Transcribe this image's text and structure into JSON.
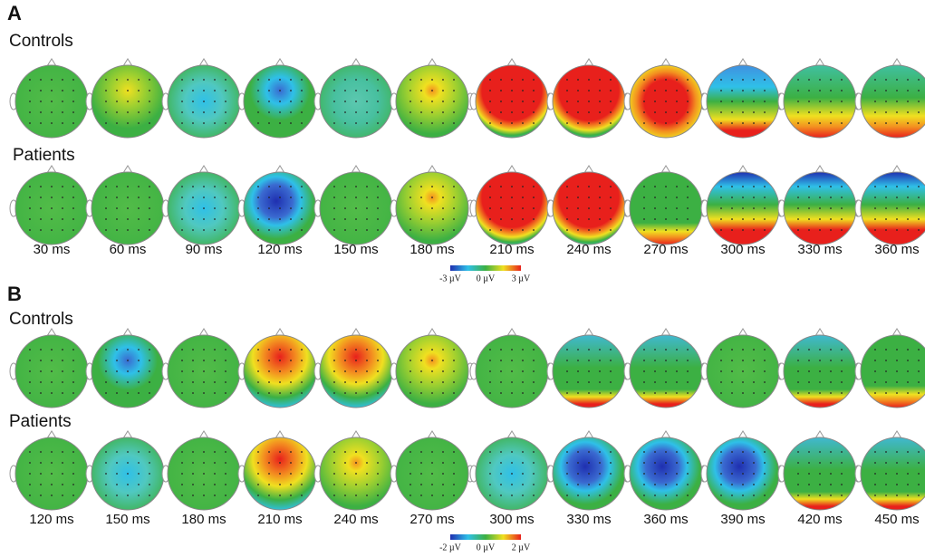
{
  "panels": [
    {
      "label": "A",
      "rows": [
        "Controls",
        "Patients"
      ],
      "times": [
        "30 ms",
        "60 ms",
        "90 ms",
        "120 ms",
        "150 ms",
        "180 ms",
        "210 ms",
        "240 ms",
        "270 ms",
        "300 ms",
        "330 ms",
        "360 ms"
      ],
      "colorbar": [
        "-3 µV",
        "0 µV",
        "3 µV"
      ]
    },
    {
      "label": "B",
      "rows": [
        "Controls",
        "Patients"
      ],
      "times": [
        "120 ms",
        "150 ms",
        "180 ms",
        "210 ms",
        "240 ms",
        "270 ms",
        "300 ms",
        "330 ms",
        "360 ms",
        "390 ms",
        "420 ms",
        "450 ms"
      ],
      "colorbar": [
        "-2 µV",
        "0 µV",
        "2 µV"
      ]
    }
  ]
}
